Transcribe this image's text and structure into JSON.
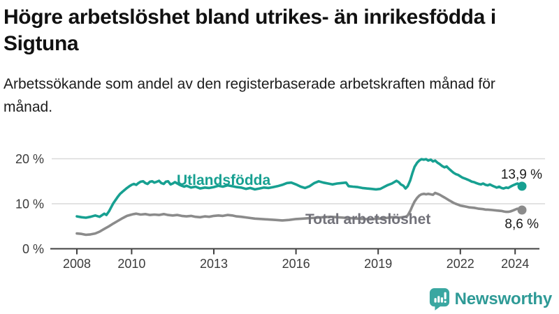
{
  "page": {
    "title": "Högre arbetslöshet bland utrikes- än inrikesfödda i Sigtuna",
    "subtitle": "Arbetssökande som andel av den registerbaserade arbetskraften månad för månad."
  },
  "branding": {
    "logo_text": "Newsworthy",
    "logo_icon": "newsworthy-speech-bubble-bar-chart-icon",
    "logo_text_color": "#2e9a96",
    "logo_icon_color": "#3aa7a1"
  },
  "chart_data": {
    "type": "line",
    "unit": "%",
    "grid": true,
    "x_range": [
      2008,
      2024.25
    ],
    "y_range": [
      0,
      21
    ],
    "x_ticks": [
      {
        "x": 2008,
        "label": "2008"
      },
      {
        "x": 2010,
        "label": "2010"
      },
      {
        "x": 2013,
        "label": "2013"
      },
      {
        "x": 2016,
        "label": "2016"
      },
      {
        "x": 2019,
        "label": "2019"
      },
      {
        "x": 2022,
        "label": "2022"
      },
      {
        "x": 2024,
        "label": "2024"
      }
    ],
    "y_ticks": [
      {
        "v": 0,
        "label": "0 %"
      },
      {
        "v": 10,
        "label": "10 %"
      },
      {
        "v": 20,
        "label": "20 %"
      }
    ],
    "colors": {
      "grid": "#d9d9d9",
      "axis": "#404040",
      "tick_text": "#3b3b3b",
      "end_label_text": "#1a1a1a"
    },
    "series": [
      {
        "name": "Utlandsfödda",
        "color": "#17a091",
        "label_color": "#17a091",
        "end_label": "13,9 %",
        "end_value": 13.9,
        "points": [
          [
            2008.0,
            7.2
          ],
          [
            2008.17,
            7.0
          ],
          [
            2008.33,
            6.9
          ],
          [
            2008.5,
            7.1
          ],
          [
            2008.67,
            7.4
          ],
          [
            2008.83,
            7.1
          ],
          [
            2009.0,
            7.8
          ],
          [
            2009.08,
            7.5
          ],
          [
            2009.17,
            8.3
          ],
          [
            2009.25,
            9.2
          ],
          [
            2009.33,
            10.1
          ],
          [
            2009.42,
            10.9
          ],
          [
            2009.5,
            11.6
          ],
          [
            2009.58,
            12.2
          ],
          [
            2009.67,
            12.7
          ],
          [
            2009.75,
            13.1
          ],
          [
            2009.83,
            13.5
          ],
          [
            2009.92,
            13.9
          ],
          [
            2010.0,
            14.2
          ],
          [
            2010.08,
            14.4
          ],
          [
            2010.17,
            14.2
          ],
          [
            2010.25,
            14.6
          ],
          [
            2010.33,
            14.9
          ],
          [
            2010.42,
            15.0
          ],
          [
            2010.5,
            14.6
          ],
          [
            2010.58,
            14.4
          ],
          [
            2010.67,
            14.9
          ],
          [
            2010.75,
            15.0
          ],
          [
            2010.83,
            14.7
          ],
          [
            2010.92,
            14.9
          ],
          [
            2011.0,
            15.1
          ],
          [
            2011.08,
            14.6
          ],
          [
            2011.17,
            14.4
          ],
          [
            2011.25,
            14.9
          ],
          [
            2011.33,
            15.0
          ],
          [
            2011.42,
            14.3
          ],
          [
            2011.5,
            14.5
          ],
          [
            2011.58,
            14.8
          ],
          [
            2011.67,
            14.5
          ],
          [
            2011.75,
            14.2
          ],
          [
            2011.83,
            14.0
          ],
          [
            2011.92,
            13.8
          ],
          [
            2012.0,
            14.0
          ],
          [
            2012.17,
            13.6
          ],
          [
            2012.33,
            13.8
          ],
          [
            2012.5,
            13.4
          ],
          [
            2012.67,
            13.6
          ],
          [
            2012.83,
            13.5
          ],
          [
            2013.0,
            13.7
          ],
          [
            2013.17,
            14.0
          ],
          [
            2013.33,
            13.8
          ],
          [
            2013.5,
            14.1
          ],
          [
            2013.67,
            13.9
          ],
          [
            2013.83,
            13.7
          ],
          [
            2014.0,
            13.6
          ],
          [
            2014.17,
            13.3
          ],
          [
            2014.33,
            13.5
          ],
          [
            2014.5,
            13.2
          ],
          [
            2014.67,
            13.4
          ],
          [
            2014.83,
            13.6
          ],
          [
            2015.0,
            13.5
          ],
          [
            2015.17,
            13.7
          ],
          [
            2015.33,
            13.9
          ],
          [
            2015.5,
            14.2
          ],
          [
            2015.67,
            14.6
          ],
          [
            2015.83,
            14.7
          ],
          [
            2016.0,
            14.3
          ],
          [
            2016.17,
            13.8
          ],
          [
            2016.33,
            13.5
          ],
          [
            2016.5,
            13.9
          ],
          [
            2016.67,
            14.6
          ],
          [
            2016.83,
            15.0
          ],
          [
            2017.0,
            14.7
          ],
          [
            2017.17,
            14.5
          ],
          [
            2017.33,
            14.3
          ],
          [
            2017.5,
            14.5
          ],
          [
            2017.67,
            14.6
          ],
          [
            2017.83,
            14.7
          ],
          [
            2017.92,
            13.9
          ],
          [
            2018.08,
            13.8
          ],
          [
            2018.25,
            13.7
          ],
          [
            2018.42,
            13.5
          ],
          [
            2018.58,
            13.4
          ],
          [
            2018.75,
            13.3
          ],
          [
            2018.92,
            13.2
          ],
          [
            2019.08,
            13.3
          ],
          [
            2019.17,
            13.6
          ],
          [
            2019.33,
            14.1
          ],
          [
            2019.5,
            14.5
          ],
          [
            2019.67,
            15.1
          ],
          [
            2019.75,
            14.8
          ],
          [
            2019.83,
            14.3
          ],
          [
            2019.92,
            14.0
          ],
          [
            2020.0,
            13.4
          ],
          [
            2020.08,
            13.9
          ],
          [
            2020.17,
            15.2
          ],
          [
            2020.25,
            16.8
          ],
          [
            2020.33,
            18.2
          ],
          [
            2020.42,
            19.1
          ],
          [
            2020.5,
            19.6
          ],
          [
            2020.58,
            19.9
          ],
          [
            2020.67,
            19.8
          ],
          [
            2020.75,
            19.9
          ],
          [
            2020.83,
            19.6
          ],
          [
            2020.92,
            19.8
          ],
          [
            2021.0,
            19.4
          ],
          [
            2021.08,
            19.6
          ],
          [
            2021.17,
            19.1
          ],
          [
            2021.25,
            18.8
          ],
          [
            2021.33,
            18.4
          ],
          [
            2021.42,
            18.1
          ],
          [
            2021.5,
            18.3
          ],
          [
            2021.58,
            17.8
          ],
          [
            2021.67,
            17.3
          ],
          [
            2021.75,
            16.9
          ],
          [
            2021.83,
            16.6
          ],
          [
            2021.92,
            16.4
          ],
          [
            2022.0,
            16.1
          ],
          [
            2022.08,
            15.8
          ],
          [
            2022.17,
            15.6
          ],
          [
            2022.25,
            15.4
          ],
          [
            2022.33,
            15.2
          ],
          [
            2022.42,
            14.9
          ],
          [
            2022.5,
            14.8
          ],
          [
            2022.58,
            14.6
          ],
          [
            2022.67,
            14.4
          ],
          [
            2022.75,
            14.3
          ],
          [
            2022.83,
            14.5
          ],
          [
            2022.92,
            14.2
          ],
          [
            2023.0,
            14.1
          ],
          [
            2023.08,
            14.3
          ],
          [
            2023.17,
            14.0
          ],
          [
            2023.25,
            13.8
          ],
          [
            2023.33,
            13.6
          ],
          [
            2023.42,
            13.8
          ],
          [
            2023.5,
            13.5
          ],
          [
            2023.58,
            13.4
          ],
          [
            2023.67,
            13.6
          ],
          [
            2023.75,
            13.5
          ],
          [
            2023.83,
            13.8
          ],
          [
            2023.92,
            14.1
          ],
          [
            2024.0,
            14.3
          ],
          [
            2024.08,
            14.5
          ],
          [
            2024.17,
            14.3
          ],
          [
            2024.25,
            13.9
          ]
        ]
      },
      {
        "name": "Total arbetslöshet",
        "color": "#8b8b8b",
        "label_color": "#72727a",
        "end_label": "8,6 %",
        "end_value": 8.6,
        "points": [
          [
            2008.0,
            3.4
          ],
          [
            2008.17,
            3.3
          ],
          [
            2008.33,
            3.1
          ],
          [
            2008.5,
            3.2
          ],
          [
            2008.67,
            3.4
          ],
          [
            2008.83,
            3.8
          ],
          [
            2009.0,
            4.4
          ],
          [
            2009.17,
            5.0
          ],
          [
            2009.33,
            5.6
          ],
          [
            2009.5,
            6.2
          ],
          [
            2009.67,
            6.8
          ],
          [
            2009.83,
            7.3
          ],
          [
            2010.0,
            7.6
          ],
          [
            2010.08,
            7.7
          ],
          [
            2010.17,
            7.8
          ],
          [
            2010.33,
            7.6
          ],
          [
            2010.5,
            7.7
          ],
          [
            2010.67,
            7.5
          ],
          [
            2010.83,
            7.6
          ],
          [
            2011.0,
            7.5
          ],
          [
            2011.17,
            7.7
          ],
          [
            2011.33,
            7.5
          ],
          [
            2011.5,
            7.4
          ],
          [
            2011.67,
            7.5
          ],
          [
            2011.83,
            7.3
          ],
          [
            2012.0,
            7.2
          ],
          [
            2012.17,
            7.3
          ],
          [
            2012.33,
            7.1
          ],
          [
            2012.5,
            7.0
          ],
          [
            2012.67,
            7.2
          ],
          [
            2012.83,
            7.1
          ],
          [
            2013.0,
            7.3
          ],
          [
            2013.17,
            7.4
          ],
          [
            2013.33,
            7.3
          ],
          [
            2013.5,
            7.5
          ],
          [
            2013.67,
            7.4
          ],
          [
            2013.83,
            7.2
          ],
          [
            2014.0,
            7.1
          ],
          [
            2014.25,
            6.9
          ],
          [
            2014.5,
            6.7
          ],
          [
            2014.75,
            6.6
          ],
          [
            2015.0,
            6.5
          ],
          [
            2015.25,
            6.4
          ],
          [
            2015.5,
            6.3
          ],
          [
            2015.75,
            6.4
          ],
          [
            2016.0,
            6.6
          ],
          [
            2016.25,
            6.7
          ],
          [
            2016.5,
            6.8
          ],
          [
            2016.75,
            6.9
          ],
          [
            2017.0,
            7.0
          ],
          [
            2017.25,
            7.1
          ],
          [
            2017.5,
            7.0
          ],
          [
            2017.75,
            6.9
          ],
          [
            2018.0,
            6.8
          ],
          [
            2018.25,
            6.7
          ],
          [
            2018.5,
            6.6
          ],
          [
            2018.75,
            6.6
          ],
          [
            2019.0,
            6.7
          ],
          [
            2019.25,
            6.8
          ],
          [
            2019.5,
            7.0
          ],
          [
            2019.75,
            6.9
          ],
          [
            2020.0,
            7.1
          ],
          [
            2020.08,
            7.4
          ],
          [
            2020.17,
            8.4
          ],
          [
            2020.25,
            9.5
          ],
          [
            2020.33,
            10.5
          ],
          [
            2020.42,
            11.3
          ],
          [
            2020.5,
            11.8
          ],
          [
            2020.58,
            12.1
          ],
          [
            2020.67,
            12.2
          ],
          [
            2020.75,
            12.1
          ],
          [
            2020.83,
            12.2
          ],
          [
            2020.92,
            12.1
          ],
          [
            2021.0,
            12.0
          ],
          [
            2021.08,
            12.4
          ],
          [
            2021.17,
            12.2
          ],
          [
            2021.25,
            12.0
          ],
          [
            2021.33,
            11.7
          ],
          [
            2021.42,
            11.4
          ],
          [
            2021.5,
            11.1
          ],
          [
            2021.58,
            10.8
          ],
          [
            2021.67,
            10.5
          ],
          [
            2021.75,
            10.2
          ],
          [
            2021.83,
            10.0
          ],
          [
            2021.92,
            9.8
          ],
          [
            2022.0,
            9.6
          ],
          [
            2022.08,
            9.5
          ],
          [
            2022.17,
            9.4
          ],
          [
            2022.25,
            9.3
          ],
          [
            2022.33,
            9.2
          ],
          [
            2022.5,
            9.1
          ],
          [
            2022.58,
            9.0
          ],
          [
            2022.67,
            8.9
          ],
          [
            2022.83,
            8.8
          ],
          [
            2022.92,
            8.7
          ],
          [
            2023.0,
            8.7
          ],
          [
            2023.17,
            8.6
          ],
          [
            2023.33,
            8.5
          ],
          [
            2023.5,
            8.4
          ],
          [
            2023.58,
            8.3
          ],
          [
            2023.67,
            8.2
          ],
          [
            2023.75,
            8.2
          ],
          [
            2023.83,
            8.3
          ],
          [
            2023.92,
            8.5
          ],
          [
            2024.0,
            8.7
          ],
          [
            2024.08,
            8.9
          ],
          [
            2024.17,
            8.8
          ],
          [
            2024.25,
            8.6
          ]
        ]
      }
    ]
  }
}
